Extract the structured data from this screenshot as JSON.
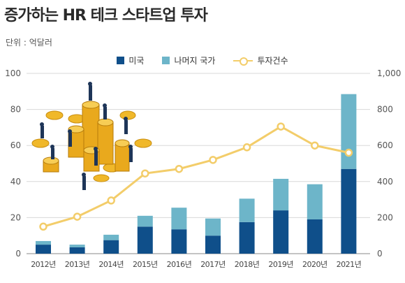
{
  "title": "증가하는 HR 테크 스타트업 투자",
  "unit": "단위 : 억달러",
  "colors": {
    "us": "#0f4f8a",
    "others": "#6db5c9",
    "line": "#f3cd6a",
    "grid": "#d8d8d8"
  },
  "chart_data": {
    "type": "bar",
    "stacked": true,
    "categories": [
      "2012년",
      "2013년",
      "2014년",
      "2015년",
      "2016년",
      "2017년",
      "2018년",
      "2019년",
      "2020년",
      "2021년"
    ],
    "series": [
      {
        "name": "미국",
        "values": [
          5,
          3.5,
          7.5,
          15,
          13.5,
          10,
          17.5,
          24,
          19,
          47
        ]
      },
      {
        "name": "나머지 국가",
        "values": [
          2,
          1.5,
          3,
          6,
          12,
          9.5,
          13,
          17.5,
          19.5,
          41.5
        ]
      }
    ],
    "line_series": {
      "name": "투자건수",
      "values": [
        150,
        205,
        295,
        445,
        470,
        520,
        590,
        705,
        600,
        560
      ]
    },
    "yleft": {
      "ticks": [
        "100",
        "80",
        "60",
        "40",
        "20",
        "0"
      ],
      "ylim": [
        0,
        100
      ]
    },
    "yright": {
      "ticks": [
        "1,000",
        "800",
        "600",
        "400",
        "200",
        "0"
      ],
      "ylim": [
        0,
        1000
      ]
    },
    "legend_position": "top-center"
  }
}
